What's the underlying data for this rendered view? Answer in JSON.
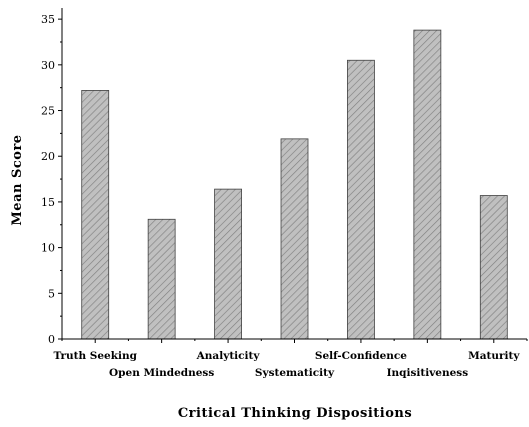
{
  "chart_data": {
    "type": "bar",
    "title": "",
    "xlabel": "Critical Thinking Dispositions",
    "ylabel": "Mean Score",
    "categories": [
      "Truth Seeking",
      "Open Mindedness",
      "Analyticity",
      "Systematicity",
      "Self-Confidence",
      "Inqisitiveness",
      "Maturity"
    ],
    "values": [
      27.2,
      13.1,
      16.4,
      21.9,
      30.5,
      33.8,
      15.7
    ],
    "ylim": [
      0,
      36
    ],
    "yticks": [
      "0",
      "5",
      "10",
      "15",
      "20",
      "25",
      "30",
      "35"
    ],
    "label_rows": [
      "upper",
      "lower",
      "upper",
      "lower",
      "upper",
      "lower",
      "upper"
    ],
    "grid": false,
    "bar_fill": "#c0c0c0",
    "bar_hatch": "#808080",
    "bar_stroke": "#404040"
  }
}
